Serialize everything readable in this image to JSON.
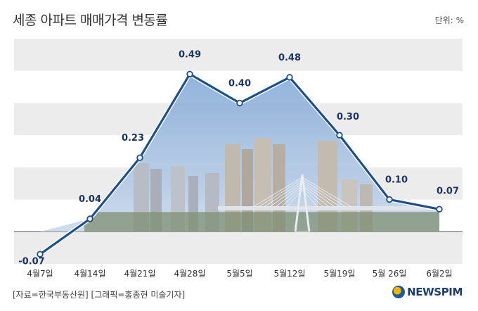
{
  "header": {
    "title": "세종 아파트 매매가격 변동률",
    "unit": "단위: %"
  },
  "footer": {
    "source": "[자료=한국부동산원] [그래픽=홍종현 미술기자]",
    "logo": "NEWSPIM"
  },
  "colors": {
    "line": "#1d4f8c",
    "band": "#ececec",
    "fill_top": "#7fa6d6",
    "fill_bottom": "#c9d8ea"
  },
  "chart_data": {
    "type": "line",
    "categories": [
      "4월7일",
      "4월14일",
      "4월21일",
      "4월28일",
      "5월5일",
      "5월12일",
      "5월19일",
      "5월 26일",
      "6월2일"
    ],
    "values": [
      -0.07,
      0.04,
      0.23,
      0.49,
      0.4,
      0.48,
      0.3,
      0.1,
      0.07
    ],
    "labels": [
      "-0.07",
      "0.04",
      "0.23",
      "0.49",
      "0.40",
      "0.48",
      "0.30",
      "0.10",
      "0.07"
    ],
    "ylim": [
      -0.1,
      0.6
    ],
    "grid": "alternating bands",
    "legend": "none"
  }
}
